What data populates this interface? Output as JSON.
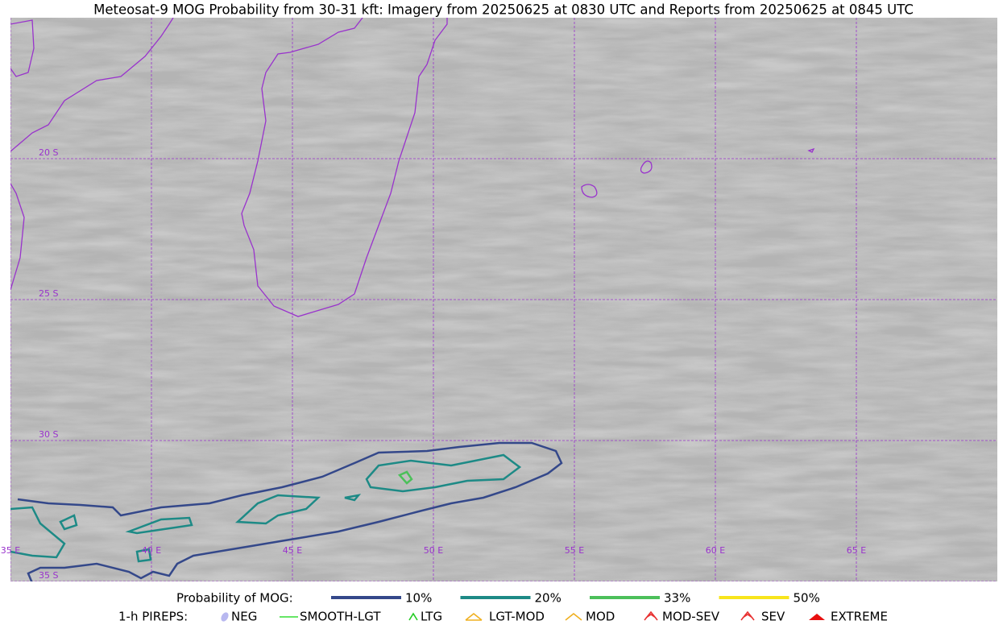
{
  "title": "Meteosat-9 MOG Probability from 30-31 kft: Imagery from 20250625 at 0830 UTC and Reports from 20250625 at 0845 UTC",
  "grid_labels": {
    "lat": [
      "20 S",
      "25 S",
      "30 S",
      "35 S"
    ],
    "lon": [
      "35 E",
      "40 E",
      "45 E",
      "50 E",
      "55 E",
      "60 E",
      "65 E"
    ]
  },
  "legend": {
    "probability": {
      "label": "Probability of MOG:",
      "items": [
        {
          "label": "10%",
          "color": "#34488a"
        },
        {
          "label": "20%",
          "color": "#1d8a86"
        },
        {
          "label": "33%",
          "color": "#4cc05a"
        },
        {
          "label": "50%",
          "color": "#f8e51c"
        }
      ]
    },
    "pireps": {
      "label": "1-h PIREPS:",
      "items": [
        {
          "label": "NEG",
          "color": "#b8b8f0"
        },
        {
          "label": "SMOOTH-LGT",
          "color": "#33dd33"
        },
        {
          "label": "LTG",
          "color": "#22cc22"
        },
        {
          "label": "LGT-MOD",
          "color": "#f0b020"
        },
        {
          "label": "MOD",
          "color": "#f0b020"
        },
        {
          "label": "MOD-SEV",
          "color": "#e83030"
        },
        {
          "label": "SEV",
          "color": "#e83030"
        },
        {
          "label": "EXTREME",
          "color": "#e81010"
        }
      ]
    }
  }
}
